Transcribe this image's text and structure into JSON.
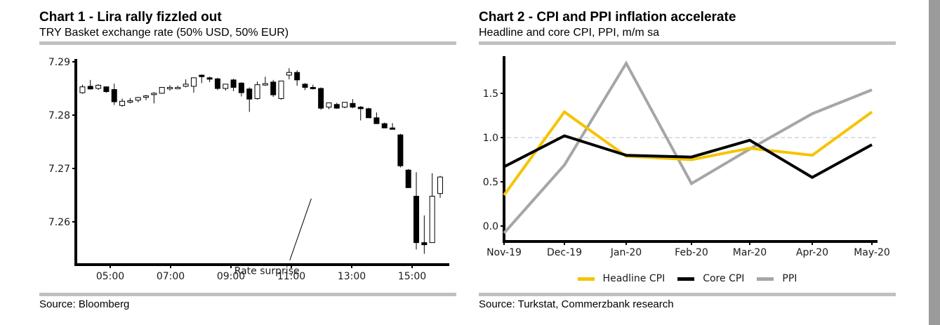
{
  "chart_data": [
    {
      "type": "candlestick",
      "title": "Chart 1 - Lira rally fizzled out",
      "subtitle": "TRY Basket exchange rate (50% USD, 50% EUR)",
      "xlabel": "",
      "ylabel": "",
      "yticks": [
        "7.26",
        "7.27",
        "7.28",
        "7.29"
      ],
      "ylim": [
        7.2525,
        7.29
      ],
      "xticks": [
        "05:00",
        "07:00",
        "09:00",
        "11:00",
        "13:00",
        "15:00"
      ],
      "xlim_hours": [
        4.0,
        16.25
      ],
      "annotation": {
        "text": "Rate surprise",
        "points_to_hour": 11.8,
        "points_to_value": 7.2654
      },
      "source": "Source: Bloomberg",
      "candles": [
        {
          "t": 4.0,
          "o": 7.2842,
          "h": 7.2857,
          "l": 7.284,
          "c": 7.2853
        },
        {
          "t": 4.25,
          "o": 7.2854,
          "h": 7.2866,
          "l": 7.2848,
          "c": 7.2849
        },
        {
          "t": 4.5,
          "o": 7.285,
          "h": 7.2858,
          "l": 7.2847,
          "c": 7.2856
        },
        {
          "t": 4.75,
          "o": 7.2853,
          "h": 7.2854,
          "l": 7.2842,
          "c": 7.2844
        },
        {
          "t": 5.0,
          "o": 7.2848,
          "h": 7.2859,
          "l": 7.2819,
          "c": 7.2825
        },
        {
          "t": 5.25,
          "o": 7.2818,
          "h": 7.2831,
          "l": 7.2816,
          "c": 7.2826
        },
        {
          "t": 5.5,
          "o": 7.2825,
          "h": 7.2832,
          "l": 7.2822,
          "c": 7.2827
        },
        {
          "t": 5.75,
          "o": 7.2828,
          "h": 7.2834,
          "l": 7.2824,
          "c": 7.2833
        },
        {
          "t": 6.0,
          "o": 7.2834,
          "h": 7.2838,
          "l": 7.2828,
          "c": 7.2836
        },
        {
          "t": 6.25,
          "o": 7.2841,
          "h": 7.2843,
          "l": 7.2822,
          "c": 7.2841
        },
        {
          "t": 6.5,
          "o": 7.2841,
          "h": 7.2852,
          "l": 7.284,
          "c": 7.2852
        },
        {
          "t": 6.75,
          "o": 7.2852,
          "h": 7.2856,
          "l": 7.2846,
          "c": 7.2852
        },
        {
          "t": 7.0,
          "o": 7.2852,
          "h": 7.2855,
          "l": 7.2849,
          "c": 7.2852
        },
        {
          "t": 7.25,
          "o": 7.2854,
          "h": 7.2867,
          "l": 7.2852,
          "c": 7.2858
        },
        {
          "t": 7.5,
          "o": 7.2854,
          "h": 7.2862,
          "l": 7.2842,
          "c": 7.287
        },
        {
          "t": 7.75,
          "o": 7.2875,
          "h": 7.2876,
          "l": 7.286,
          "c": 7.2872
        },
        {
          "t": 8.0,
          "o": 7.287,
          "h": 7.2872,
          "l": 7.2862,
          "c": 7.2868
        },
        {
          "t": 8.25,
          "o": 7.2868,
          "h": 7.287,
          "l": 7.2847,
          "c": 7.285
        },
        {
          "t": 8.5,
          "o": 7.285,
          "h": 7.2853,
          "l": 7.2846,
          "c": 7.2858
        },
        {
          "t": 8.75,
          "o": 7.2866,
          "h": 7.2868,
          "l": 7.2845,
          "c": 7.2852
        },
        {
          "t": 9.0,
          "o": 7.286,
          "h": 7.2862,
          "l": 7.2835,
          "c": 7.2842
        },
        {
          "t": 9.25,
          "o": 7.2849,
          "h": 7.2852,
          "l": 7.2806,
          "c": 7.283
        },
        {
          "t": 9.5,
          "o": 7.2831,
          "h": 7.2863,
          "l": 7.2829,
          "c": 7.2857
        },
        {
          "t": 9.75,
          "o": 7.2858,
          "h": 7.2872,
          "l": 7.2855,
          "c": 7.2859
        },
        {
          "t": 10.0,
          "o": 7.2862,
          "h": 7.2866,
          "l": 7.2834,
          "c": 7.2838
        },
        {
          "t": 10.25,
          "o": 7.2831,
          "h": 7.2863,
          "l": 7.2829,
          "c": 7.2864
        },
        {
          "t": 10.5,
          "o": 7.2875,
          "h": 7.2888,
          "l": 7.2867,
          "c": 7.288
        },
        {
          "t": 10.75,
          "o": 7.288,
          "h": 7.2884,
          "l": 7.2855,
          "c": 7.2866
        },
        {
          "t": 11.0,
          "o": 7.2858,
          "h": 7.286,
          "l": 7.2847,
          "c": 7.2852
        },
        {
          "t": 11.25,
          "o": 7.2852,
          "h": 7.2857,
          "l": 7.2848,
          "c": 7.285
        },
        {
          "t": 11.5,
          "o": 7.285,
          "h": 7.2852,
          "l": 7.281,
          "c": 7.2813
        },
        {
          "t": 11.75,
          "o": 7.2815,
          "h": 7.2818,
          "l": 7.2811,
          "c": 7.2823
        },
        {
          "t": 12.0,
          "o": 7.282,
          "h": 7.2823,
          "l": 7.2812,
          "c": 7.2813
        },
        {
          "t": 12.25,
          "o": 7.2815,
          "h": 7.282,
          "l": 7.2813,
          "c": 7.2824
        },
        {
          "t": 12.5,
          "o": 7.2822,
          "h": 7.283,
          "l": 7.2813,
          "c": 7.2815
        },
        {
          "t": 12.75,
          "o": 7.2815,
          "h": 7.2817,
          "l": 7.279,
          "c": 7.2812
        },
        {
          "t": 13.0,
          "o": 7.2812,
          "h": 7.2814,
          "l": 7.2795,
          "c": 7.2795
        },
        {
          "t": 13.25,
          "o": 7.2795,
          "h": 7.2805,
          "l": 7.2787,
          "c": 7.2784
        },
        {
          "t": 13.5,
          "o": 7.2784,
          "h": 7.2786,
          "l": 7.2776,
          "c": 7.2776
        },
        {
          "t": 13.75,
          "o": 7.2776,
          "h": 7.2785,
          "l": 7.2774,
          "c": 7.2774
        },
        {
          "t": 14.0,
          "o": 7.2763,
          "h": 7.2765,
          "l": 7.2702,
          "c": 7.2705
        },
        {
          "t": 14.25,
          "o": 7.2697,
          "h": 7.2699,
          "l": 7.2664,
          "c": 7.2664
        },
        {
          "t": 14.5,
          "o": 7.2648,
          "h": 7.2693,
          "l": 7.2548,
          "c": 7.2561
        },
        {
          "t": 14.75,
          "o": 7.2561,
          "h": 7.2612,
          "l": 7.254,
          "c": 7.2557
        },
        {
          "t": 15.0,
          "o": 7.2561,
          "h": 7.2691,
          "l": 7.2561,
          "c": 7.2648
        },
        {
          "t": 15.25,
          "o": 7.2653,
          "h": 7.2686,
          "l": 7.2645,
          "c": 7.2684
        }
      ]
    },
    {
      "type": "line",
      "title": "Chart 2 - CPI and PPI inflation accelerate",
      "subtitle": "Headline and core CPI, PPI, m/m sa",
      "xlabel": "",
      "ylabel": "",
      "categories": [
        "Nov-19",
        "Dec-19",
        "Jan-20",
        "Feb-20",
        "Mar-20",
        "Apr-20",
        "May-20"
      ],
      "yticks": [
        "0.0",
        "0.5",
        "1.0",
        "1.5"
      ],
      "ylim": [
        -0.15,
        1.92
      ],
      "reference_line": {
        "value": 1.0,
        "style": "dashed",
        "color": "#bdbdbd"
      },
      "grid": false,
      "legend": {
        "placement": "bottom-center"
      },
      "source": "Source: Turkstat, Commerzbank research",
      "series": [
        {
          "name": "Headline CPI",
          "color": "#f5c400",
          "values": [
            0.35,
            1.29,
            0.79,
            0.75,
            0.88,
            0.8,
            1.29
          ]
        },
        {
          "name": "Core CPI",
          "color": "#000000",
          "values": [
            0.67,
            1.02,
            0.8,
            0.78,
            0.97,
            0.55,
            0.92
          ]
        },
        {
          "name": "PPI",
          "color": "#a6a6a6",
          "values": [
            -0.08,
            0.69,
            1.84,
            0.48,
            0.87,
            1.27,
            1.54
          ]
        }
      ]
    }
  ],
  "next_section_heading": ""
}
